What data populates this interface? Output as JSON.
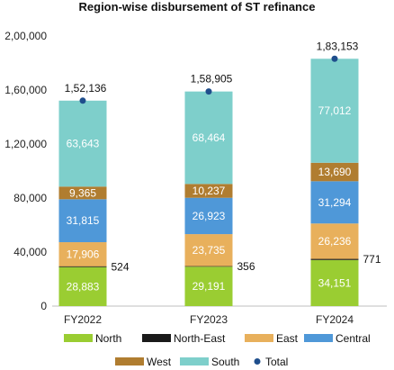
{
  "chart_data": {
    "type": "bar",
    "stacked": true,
    "title": "Region-wise disbursement of ST refinance",
    "xlabel": "",
    "ylabel": "",
    "ylim": [
      0,
      200000
    ],
    "yticks": [
      "0",
      "40,000",
      "80,000",
      "1,20,000",
      "1,60,000",
      "2,00,000"
    ],
    "ytick_values": [
      0,
      40000,
      80000,
      120000,
      160000,
      200000
    ],
    "categories": [
      "FY2022",
      "FY2023",
      "FY2024"
    ],
    "series": [
      {
        "name": "North",
        "color": "#9ACD32",
        "values": [
          28883,
          29191,
          34151
        ],
        "labels": [
          "28,883",
          "29,191",
          "34,151"
        ]
      },
      {
        "name": "North-East",
        "color": "#1a1a1a",
        "values": [
          524,
          356,
          771
        ],
        "labels": [
          "524",
          "356",
          "771"
        ]
      },
      {
        "name": "East",
        "color": "#E8B05C",
        "values": [
          17906,
          23735,
          26236
        ],
        "labels": [
          "17,906",
          "23,735",
          "26,236"
        ]
      },
      {
        "name": "Central",
        "color": "#4F98D8",
        "values": [
          31815,
          26923,
          31294
        ],
        "labels": [
          "31,815",
          "26,923",
          "31,294"
        ]
      },
      {
        "name": "West",
        "color": "#B07D30",
        "values": [
          9365,
          10237,
          13690
        ],
        "labels": [
          "9,365",
          "10,237",
          "13,690"
        ]
      },
      {
        "name": "South",
        "color": "#7ECFCB",
        "values": [
          63643,
          68464,
          77012
        ],
        "labels": [
          "63,643",
          "68,464",
          "77,012"
        ]
      }
    ],
    "total": {
      "name": "Total",
      "color": "#1F4E8C",
      "values": [
        152136,
        158905,
        183153
      ],
      "labels": [
        "1,52,136",
        "1,58,905",
        "1,83,153"
      ]
    },
    "grid": false,
    "legend": "bottom"
  }
}
